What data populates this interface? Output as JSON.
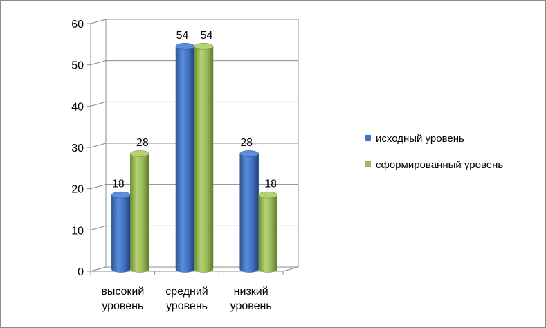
{
  "chart_data": {
    "type": "bar",
    "categories": [
      [
        "высокий",
        "уровень"
      ],
      [
        "средний",
        "уровень"
      ],
      [
        "низкий",
        "уровень"
      ]
    ],
    "series": [
      {
        "name": "исходный уровень",
        "values": [
          18,
          54,
          28
        ],
        "color": "#4472c4"
      },
      {
        "name": "сформированный уровень",
        "values": [
          28,
          54,
          18
        ],
        "color": "#9bbb59"
      }
    ],
    "ylim": [
      0,
      60
    ],
    "yticks": [
      0,
      10,
      20,
      30,
      40,
      50,
      60
    ],
    "grid": true,
    "style": "3d-cylinder",
    "legend_position": "right"
  }
}
